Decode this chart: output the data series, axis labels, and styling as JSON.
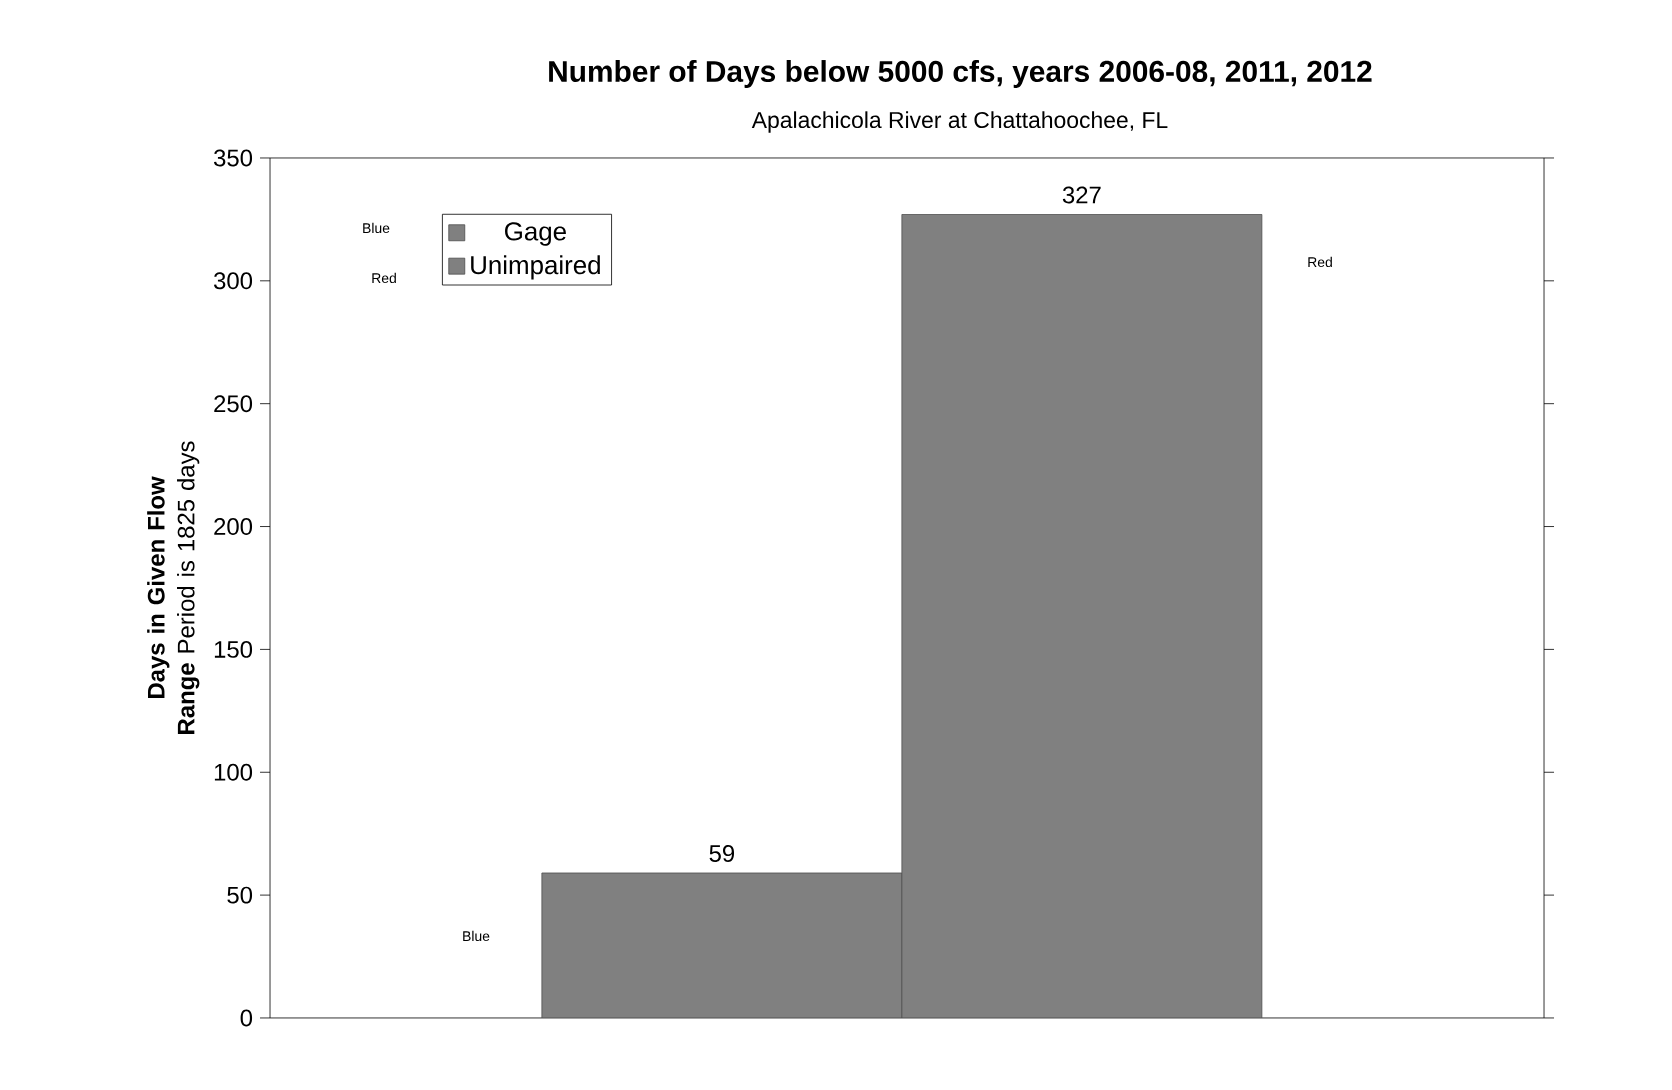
{
  "chart_data": {
    "type": "bar",
    "title": "Number of Days below 5000 cfs, years 2006-08, 2011, 2012",
    "subtitle": "Apalachicola River at Chattahoochee, FL",
    "ylabel": "**Days in Given Flow Range** Period is 1825 days",
    "categories": [
      null
    ],
    "series": [
      {
        "name": "Gage",
        "color": "#808080",
        "values": [
          59
        ]
      },
      {
        "name": "Unimpaired",
        "color": "#808080",
        "values": [
          327
        ]
      }
    ],
    "ylim": [
      0,
      350
    ],
    "yticks": [
      0,
      50,
      100,
      150,
      200,
      250,
      300,
      350
    ],
    "data_labels": true,
    "legend": "top left",
    "grid": false,
    "annotations": [
      "Blue",
      "Red",
      "Red",
      "Blue"
    ]
  }
}
